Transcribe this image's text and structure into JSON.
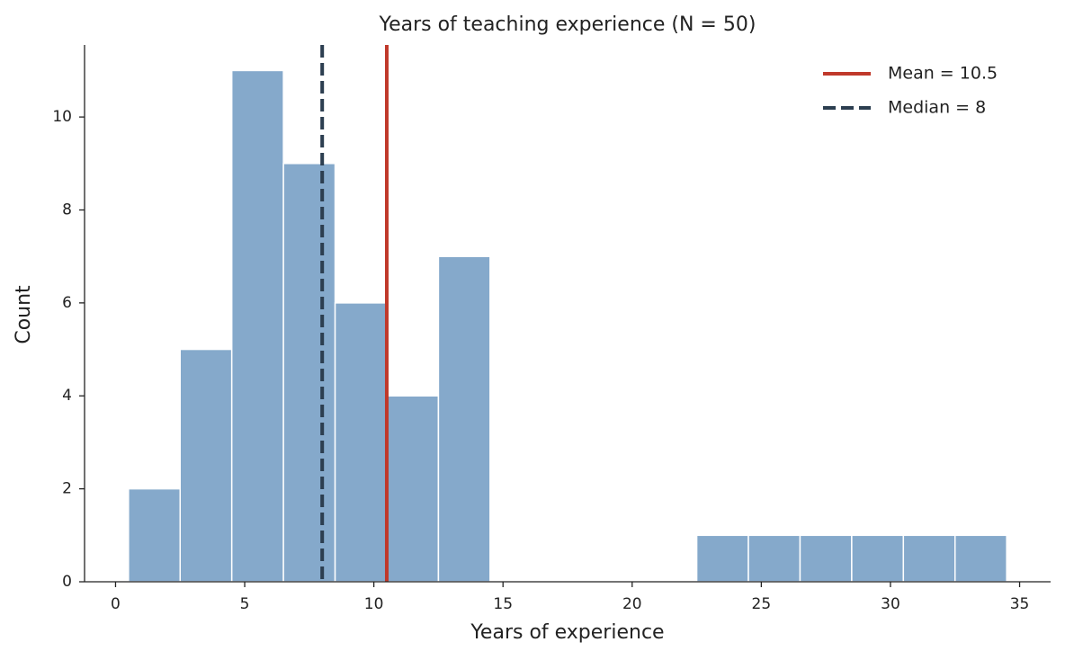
{
  "chart_data": {
    "type": "histogram",
    "title": "Years of teaching experience (N = 50)",
    "xlabel": "Years of experience",
    "ylabel": "Count",
    "bins": [
      0.5,
      2.5,
      4.5,
      6.5,
      8.5,
      10.5,
      12.5,
      14.5,
      16.5,
      18.5,
      20.5,
      22.5,
      24.5,
      26.5,
      28.5,
      30.5,
      32.5,
      34.5
    ],
    "values": [
      2,
      5,
      11,
      9,
      6,
      4,
      7,
      0,
      0,
      0,
      0,
      1,
      1,
      1,
      1,
      1,
      1
    ],
    "color": "#85a9cb",
    "xlim": [
      -1.2,
      36.2
    ],
    "ylim": [
      0,
      11.55
    ],
    "xticks": [
      0,
      5,
      10,
      15,
      20,
      25,
      30,
      35
    ],
    "yticks": [
      0,
      2,
      4,
      6,
      8,
      10
    ],
    "reference_lines": [
      {
        "name": "Mean = 10.5",
        "value": 10.5,
        "color": "#c0392b",
        "style": "solid"
      },
      {
        "name": "Median = 8",
        "value": 8,
        "color": "#2c3e50",
        "style": "dashed"
      }
    ],
    "legend": "upper right"
  }
}
